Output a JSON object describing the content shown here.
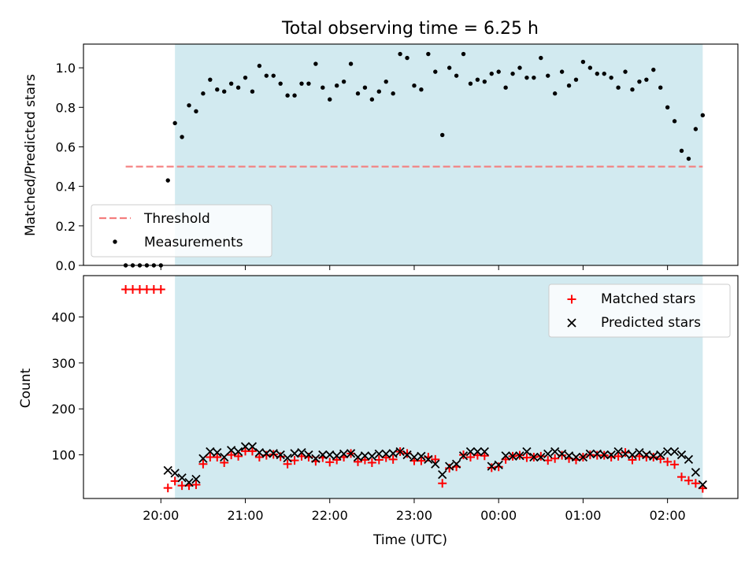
{
  "title": "Total observing time = 6.25 h",
  "colors": {
    "span": "#d2eaf0",
    "threshold": "#f47e7e",
    "matched": "#ff0000",
    "predicted": "#000000",
    "measurement": "#000000"
  },
  "chart_data": [
    {
      "type": "scatter",
      "name": "ratio",
      "ylabel": "Matched/Predicted stars",
      "ylim": [
        0,
        1.12
      ],
      "yticks": [
        0.0,
        0.2,
        0.4,
        0.6,
        0.8,
        1.0
      ],
      "ytick_labels": [
        "0.0",
        "0.2",
        "0.4",
        "0.6",
        "0.8",
        "1.0"
      ],
      "threshold": {
        "value": 0.5,
        "x_start": "19:35",
        "x_end": "02:25",
        "label": "Threshold"
      },
      "highlight_span": {
        "start": "20:10",
        "end": "02:25"
      },
      "legend": {
        "position": "lower-left",
        "entries": [
          "Threshold",
          "Measurements"
        ]
      },
      "series": [
        {
          "name": "Measurements",
          "x": [
            "19:35",
            "19:40",
            "19:45",
            "19:50",
            "19:55",
            "20:00",
            "20:05",
            "20:10",
            "20:15",
            "20:20",
            "20:25",
            "20:30",
            "20:35",
            "20:40",
            "20:45",
            "20:50",
            "20:55",
            "21:00",
            "21:05",
            "21:10",
            "21:15",
            "21:20",
            "21:25",
            "21:30",
            "21:35",
            "21:40",
            "21:45",
            "21:50",
            "21:55",
            "22:00",
            "22:05",
            "22:10",
            "22:15",
            "22:20",
            "22:25",
            "22:30",
            "22:35",
            "22:40",
            "22:45",
            "22:50",
            "22:55",
            "23:00",
            "23:05",
            "23:10",
            "23:15",
            "23:20",
            "23:25",
            "23:30",
            "23:35",
            "23:40",
            "23:45",
            "23:50",
            "23:55",
            "00:00",
            "00:05",
            "00:10",
            "00:15",
            "00:20",
            "00:25",
            "00:30",
            "00:35",
            "00:40",
            "00:45",
            "00:50",
            "00:55",
            "01:00",
            "01:05",
            "01:10",
            "01:15",
            "01:20",
            "01:25",
            "01:30",
            "01:35",
            "01:40",
            "01:45",
            "01:50",
            "01:55",
            "02:00",
            "02:05",
            "02:10",
            "02:15",
            "02:20",
            "02:25"
          ],
          "y": [
            0.0,
            0.0,
            0.0,
            0.0,
            0.0,
            0.0,
            0.43,
            0.72,
            0.65,
            0.81,
            0.78,
            0.87,
            0.94,
            0.89,
            0.88,
            0.92,
            0.9,
            0.95,
            0.88,
            1.01,
            0.96,
            0.96,
            0.92,
            0.86,
            0.86,
            0.92,
            0.92,
            1.02,
            0.9,
            0.84,
            0.91,
            0.93,
            1.02,
            0.87,
            0.9,
            0.84,
            0.88,
            0.93,
            0.87,
            1.07,
            1.05,
            0.91,
            0.89,
            1.07,
            0.98,
            0.66,
            1.0,
            0.96,
            1.07,
            0.92,
            0.94,
            0.93,
            0.97,
            0.98,
            0.9,
            0.97,
            1.0,
            0.95,
            0.95,
            1.05,
            0.96,
            0.87,
            0.98,
            0.91,
            0.94,
            1.03,
            1.0,
            0.97,
            0.97,
            0.95,
            0.9,
            0.98,
            0.89,
            0.93,
            0.94,
            0.99,
            0.9,
            0.8,
            0.73,
            0.58,
            0.54,
            0.69,
            0.76
          ]
        }
      ]
    },
    {
      "type": "scatter",
      "name": "counts",
      "xlabel": "Time (UTC)",
      "ylabel": "Count",
      "ylim": [
        5,
        490
      ],
      "yticks": [
        100,
        200,
        300,
        400
      ],
      "ytick_labels": [
        "100",
        "200",
        "300",
        "400"
      ],
      "xlim": [
        "19:05",
        "02:50"
      ],
      "xticks": [
        "20:00",
        "21:00",
        "22:00",
        "23:00",
        "00:00",
        "01:00",
        "02:00"
      ],
      "xtick_labels": [
        "20:00",
        "21:00",
        "22:00",
        "23:00",
        "00:00",
        "01:00",
        "02:00"
      ],
      "highlight_span": {
        "start": "20:10",
        "end": "02:25"
      },
      "legend": {
        "position": "upper-right",
        "entries": [
          "Matched stars",
          "Predicted stars"
        ]
      },
      "series": [
        {
          "name": "Matched stars",
          "marker": "plus",
          "x": [
            "19:35",
            "19:40",
            "19:45",
            "19:50",
            "19:55",
            "20:00",
            "20:05",
            "20:10",
            "20:15",
            "20:20",
            "20:25",
            "20:30",
            "20:35",
            "20:40",
            "20:45",
            "20:50",
            "20:55",
            "21:00",
            "21:05",
            "21:10",
            "21:15",
            "21:20",
            "21:25",
            "21:30",
            "21:35",
            "21:40",
            "21:45",
            "21:50",
            "21:55",
            "22:00",
            "22:05",
            "22:10",
            "22:15",
            "22:20",
            "22:25",
            "22:30",
            "22:35",
            "22:40",
            "22:45",
            "22:50",
            "22:55",
            "23:00",
            "23:05",
            "23:10",
            "23:15",
            "23:20",
            "23:25",
            "23:30",
            "23:35",
            "23:40",
            "23:45",
            "23:50",
            "23:55",
            "00:00",
            "00:05",
            "00:10",
            "00:15",
            "00:20",
            "00:25",
            "00:30",
            "00:35",
            "00:40",
            "00:45",
            "00:50",
            "00:55",
            "01:00",
            "01:05",
            "01:10",
            "01:15",
            "01:20",
            "01:25",
            "01:30",
            "01:35",
            "01:40",
            "01:45",
            "01:50",
            "01:55",
            "02:00",
            "02:05",
            "02:10",
            "02:15",
            "02:20",
            "02:25"
          ],
          "y": [
            460,
            460,
            460,
            460,
            460,
            460,
            28,
            43,
            33,
            33,
            35,
            80,
            95,
            95,
            83,
            100,
            97,
            108,
            108,
            95,
            99,
            101,
            96,
            80,
            88,
            97,
            95,
            86,
            94,
            84,
            89,
            95,
            103,
            85,
            89,
            83,
            89,
            94,
            90,
            107,
            103,
            87,
            87,
            95,
            90,
            38,
            71,
            74,
            100,
            95,
            99,
            98,
            72,
            74,
            90,
            97,
            99,
            94,
            95,
            97,
            88,
            92,
            99,
            92,
            89,
            95,
            100,
            99,
            99,
            95,
            97,
            105,
            89,
            97,
            95,
            95,
            91,
            85,
            79,
            52,
            44,
            38,
            27
          ]
        },
        {
          "name": "Predicted stars",
          "marker": "x",
          "x": [
            "20:05",
            "20:10",
            "20:15",
            "20:20",
            "20:25",
            "20:30",
            "20:35",
            "20:40",
            "20:45",
            "20:50",
            "20:55",
            "21:00",
            "21:05",
            "21:10",
            "21:15",
            "21:20",
            "21:25",
            "21:30",
            "21:35",
            "21:40",
            "21:45",
            "21:50",
            "21:55",
            "22:00",
            "22:05",
            "22:10",
            "22:15",
            "22:20",
            "22:25",
            "22:30",
            "22:35",
            "22:40",
            "22:45",
            "22:50",
            "22:55",
            "23:00",
            "23:05",
            "23:10",
            "23:15",
            "23:20",
            "23:25",
            "23:30",
            "23:35",
            "23:40",
            "23:45",
            "23:50",
            "23:55",
            "00:00",
            "00:05",
            "00:10",
            "00:15",
            "00:20",
            "00:25",
            "00:30",
            "00:35",
            "00:40",
            "00:45",
            "00:50",
            "00:55",
            "01:00",
            "01:05",
            "01:10",
            "01:15",
            "01:20",
            "01:25",
            "01:30",
            "01:35",
            "01:40",
            "01:45",
            "01:50",
            "01:55",
            "02:00",
            "02:05",
            "02:10",
            "02:15",
            "02:20",
            "02:25"
          ],
          "y": [
            66,
            60,
            50,
            40,
            47,
            92,
            107,
            105,
            95,
            110,
            107,
            118,
            118,
            105,
            103,
            103,
            100,
            93,
            103,
            105,
            100,
            92,
            100,
            100,
            98,
            102,
            103,
            95,
            98,
            97,
            102,
            102,
            103,
            107,
            100,
            95,
            97,
            90,
            80,
            57,
            75,
            80,
            98,
            107,
            107,
            107,
            75,
            78,
            98,
            97,
            98,
            107,
            95,
            95,
            102,
            107,
            102,
            98,
            95,
            95,
            102,
            102,
            100,
            100,
            107,
            102,
            100,
            105,
            100,
            97,
            100,
            107,
            107,
            100,
            90,
            62,
            35
          ]
        }
      ]
    }
  ]
}
